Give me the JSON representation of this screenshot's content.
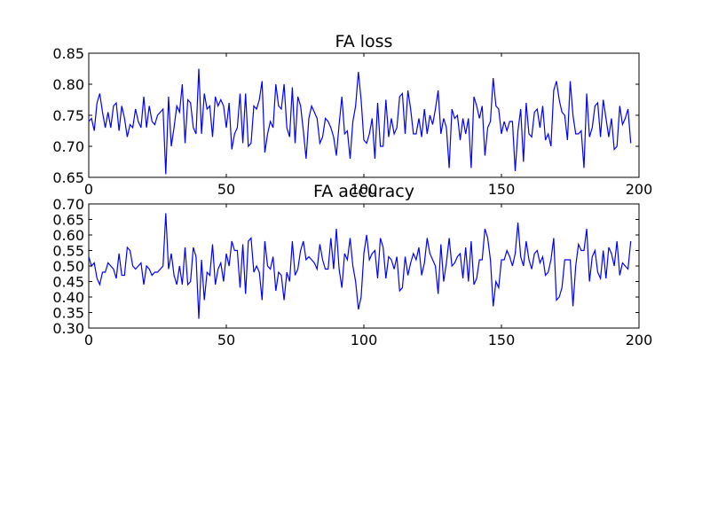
{
  "colors": {
    "line": "#0000ff",
    "axes": "#000000",
    "background": "#ffffff"
  },
  "chart_data": [
    {
      "type": "line",
      "title": "FA loss",
      "xlabel": "",
      "ylabel": "",
      "xlim": [
        0,
        200
      ],
      "ylim": [
        0.65,
        0.85
      ],
      "xticks": [
        "0",
        "50",
        "100",
        "150",
        "200"
      ],
      "yticks": [
        "0.65",
        "0.70",
        "0.75",
        "0.80",
        "0.85"
      ],
      "grid": false,
      "series": [
        {
          "x_start": 0,
          "x_step": 1,
          "values": [
            0.74,
            0.745,
            0.725,
            0.77,
            0.785,
            0.755,
            0.73,
            0.755,
            0.73,
            0.765,
            0.77,
            0.725,
            0.765,
            0.745,
            0.715,
            0.735,
            0.73,
            0.76,
            0.74,
            0.73,
            0.78,
            0.73,
            0.765,
            0.74,
            0.735,
            0.75,
            0.755,
            0.76,
            0.655,
            0.78,
            0.7,
            0.73,
            0.765,
            0.755,
            0.8,
            0.705,
            0.775,
            0.77,
            0.73,
            0.72,
            0.825,
            0.72,
            0.785,
            0.76,
            0.765,
            0.715,
            0.78,
            0.765,
            0.775,
            0.765,
            0.73,
            0.77,
            0.695,
            0.72,
            0.73,
            0.785,
            0.705,
            0.785,
            0.7,
            0.705,
            0.765,
            0.76,
            0.775,
            0.805,
            0.69,
            0.72,
            0.74,
            0.73,
            0.8,
            0.765,
            0.76,
            0.8,
            0.73,
            0.715,
            0.795,
            0.705,
            0.78,
            0.765,
            0.725,
            0.68,
            0.745,
            0.765,
            0.755,
            0.745,
            0.705,
            0.715,
            0.745,
            0.74,
            0.73,
            0.715,
            0.685,
            0.735,
            0.78,
            0.72,
            0.725,
            0.68,
            0.74,
            0.765,
            0.82,
            0.775,
            0.71,
            0.705,
            0.72,
            0.745,
            0.68,
            0.77,
            0.7,
            0.7,
            0.775,
            0.715,
            0.745,
            0.72,
            0.73,
            0.78,
            0.785,
            0.72,
            0.79,
            0.76,
            0.72,
            0.72,
            0.745,
            0.715,
            0.76,
            0.72,
            0.75,
            0.735,
            0.76,
            0.79,
            0.72,
            0.745,
            0.73,
            0.665,
            0.76,
            0.745,
            0.75,
            0.71,
            0.745,
            0.72,
            0.745,
            0.665,
            0.78,
            0.765,
            0.745,
            0.765,
            0.685,
            0.73,
            0.74,
            0.81,
            0.765,
            0.76,
            0.72,
            0.74,
            0.725,
            0.74,
            0.74,
            0.66,
            0.725,
            0.76,
            0.675,
            0.77,
            0.72,
            0.715,
            0.755,
            0.76,
            0.73,
            0.765,
            0.71,
            0.72,
            0.7,
            0.79,
            0.805,
            0.775,
            0.755,
            0.75,
            0.71,
            0.805,
            0.75,
            0.72,
            0.72,
            0.725,
            0.665,
            0.785,
            0.715,
            0.73,
            0.765,
            0.77,
            0.715,
            0.775,
            0.745,
            0.715,
            0.745,
            0.695,
            0.7,
            0.765,
            0.735,
            0.745,
            0.76,
            0.705
          ]
        }
      ]
    },
    {
      "type": "line",
      "title": "FA accuracy",
      "xlabel": "",
      "ylabel": "",
      "xlim": [
        0,
        200
      ],
      "ylim": [
        0.3,
        0.7
      ],
      "xticks": [
        "0",
        "50",
        "100",
        "150",
        "200"
      ],
      "yticks": [
        "0.30",
        "0.35",
        "0.40",
        "0.45",
        "0.50",
        "0.55",
        "0.60",
        "0.65",
        "0.70"
      ],
      "grid": false,
      "series": [
        {
          "x_start": 0,
          "x_step": 1,
          "values": [
            0.53,
            0.5,
            0.51,
            0.46,
            0.44,
            0.48,
            0.48,
            0.51,
            0.5,
            0.49,
            0.46,
            0.54,
            0.47,
            0.47,
            0.56,
            0.55,
            0.5,
            0.49,
            0.5,
            0.51,
            0.44,
            0.5,
            0.49,
            0.47,
            0.48,
            0.48,
            0.49,
            0.5,
            0.67,
            0.49,
            0.54,
            0.47,
            0.44,
            0.5,
            0.44,
            0.56,
            0.44,
            0.45,
            0.56,
            0.53,
            0.33,
            0.52,
            0.39,
            0.48,
            0.47,
            0.57,
            0.44,
            0.49,
            0.51,
            0.45,
            0.54,
            0.5,
            0.58,
            0.55,
            0.55,
            0.43,
            0.57,
            0.41,
            0.58,
            0.59,
            0.48,
            0.5,
            0.48,
            0.39,
            0.58,
            0.5,
            0.49,
            0.53,
            0.42,
            0.48,
            0.47,
            0.39,
            0.48,
            0.45,
            0.58,
            0.47,
            0.49,
            0.55,
            0.58,
            0.52,
            0.53,
            0.52,
            0.51,
            0.49,
            0.57,
            0.52,
            0.49,
            0.49,
            0.59,
            0.49,
            0.62,
            0.49,
            0.43,
            0.54,
            0.52,
            0.59,
            0.5,
            0.45,
            0.36,
            0.4,
            0.54,
            0.6,
            0.52,
            0.54,
            0.55,
            0.46,
            0.59,
            0.56,
            0.46,
            0.53,
            0.52,
            0.49,
            0.53,
            0.42,
            0.43,
            0.53,
            0.47,
            0.51,
            0.54,
            0.52,
            0.56,
            0.47,
            0.51,
            0.59,
            0.54,
            0.52,
            0.5,
            0.41,
            0.57,
            0.45,
            0.51,
            0.59,
            0.5,
            0.51,
            0.53,
            0.54,
            0.46,
            0.56,
            0.45,
            0.58,
            0.44,
            0.46,
            0.52,
            0.52,
            0.62,
            0.59,
            0.52,
            0.37,
            0.45,
            0.43,
            0.52,
            0.52,
            0.55,
            0.53,
            0.5,
            0.54,
            0.64,
            0.53,
            0.5,
            0.58,
            0.52,
            0.49,
            0.54,
            0.55,
            0.51,
            0.53,
            0.47,
            0.48,
            0.52,
            0.59,
            0.39,
            0.4,
            0.43,
            0.52,
            0.52,
            0.52,
            0.37,
            0.5,
            0.57,
            0.55,
            0.55,
            0.62,
            0.45,
            0.53,
            0.55,
            0.48,
            0.46,
            0.55,
            0.46,
            0.56,
            0.54,
            0.5,
            0.58,
            0.47,
            0.51,
            0.5,
            0.49,
            0.58
          ]
        }
      ]
    }
  ]
}
